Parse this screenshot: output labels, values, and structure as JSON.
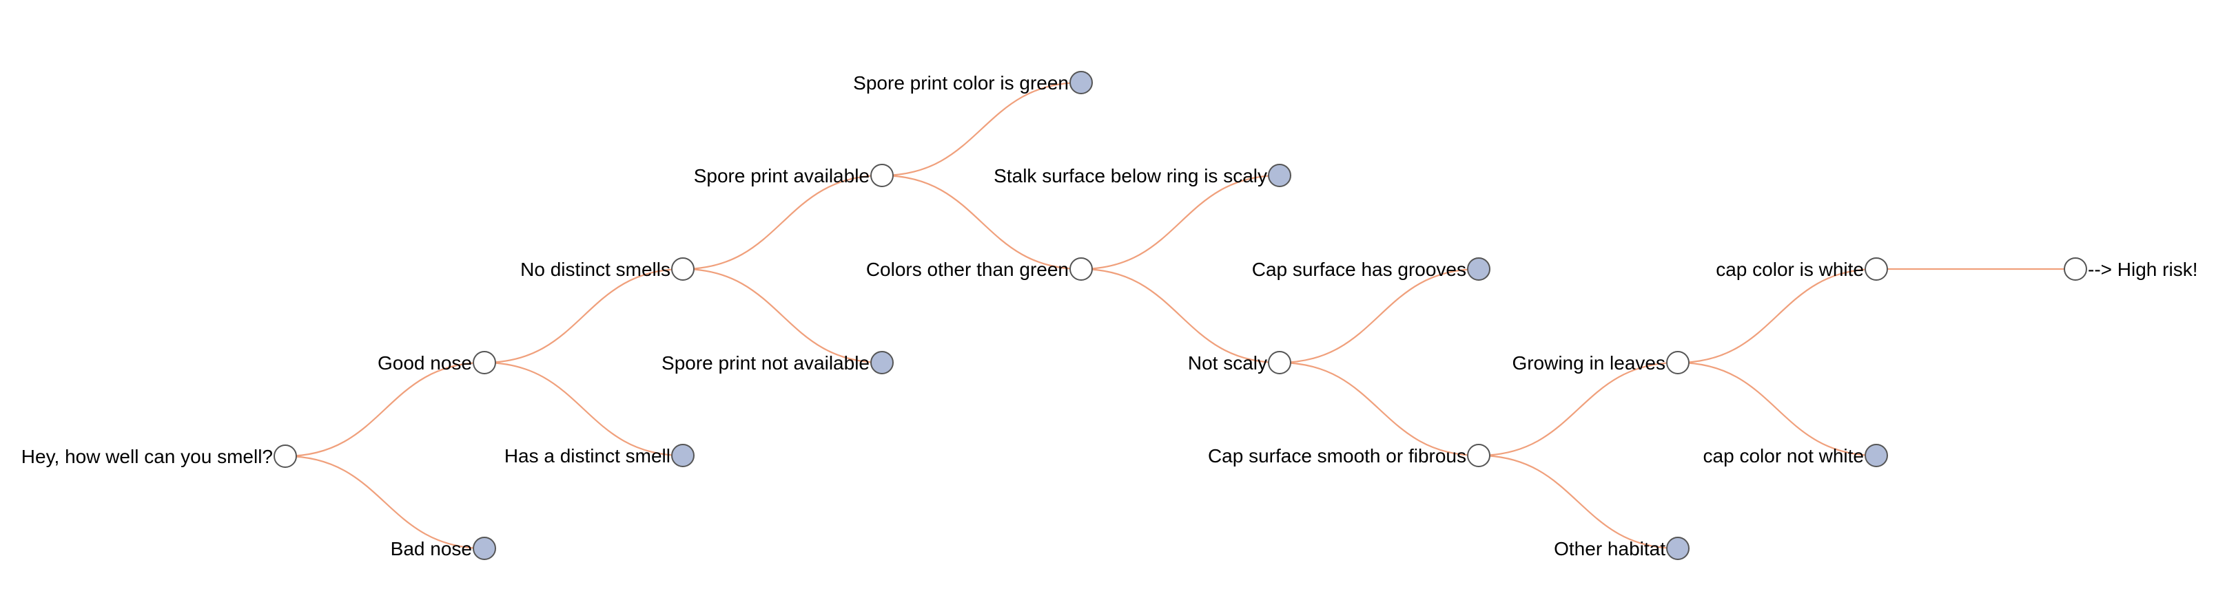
{
  "colors": {
    "link": "#f0a07c",
    "open_node_fill": "#ffffff",
    "leaf_node_fill": "#b0bcd8",
    "node_stroke": "#555555"
  },
  "tree": {
    "nodes": [
      {
        "id": "root",
        "label": "Hey, how well can you smell?",
        "type": "open",
        "label_side": "left"
      },
      {
        "id": "good-nose",
        "label": "Good nose",
        "type": "open",
        "label_side": "left",
        "parent": "root"
      },
      {
        "id": "bad-nose",
        "label": "Bad nose",
        "type": "leaf",
        "label_side": "left",
        "parent": "root"
      },
      {
        "id": "no-distinct-smells",
        "label": "No distinct smells",
        "type": "open",
        "label_side": "left",
        "parent": "good-nose"
      },
      {
        "id": "has-distinct-smell",
        "label": "Has a distinct smell",
        "type": "leaf",
        "label_side": "left",
        "parent": "good-nose"
      },
      {
        "id": "spore-print-available",
        "label": "Spore print available",
        "type": "open",
        "label_side": "left",
        "parent": "no-distinct-smells"
      },
      {
        "id": "spore-print-not-available",
        "label": "Spore print not available",
        "type": "leaf",
        "label_side": "left",
        "parent": "no-distinct-smells"
      },
      {
        "id": "spore-print-green",
        "label": "Spore print color is green",
        "type": "leaf",
        "label_side": "left",
        "parent": "spore-print-available"
      },
      {
        "id": "colors-other-than-green",
        "label": "Colors other than green",
        "type": "open",
        "label_side": "left",
        "parent": "spore-print-available"
      },
      {
        "id": "stalk-surface-scaly",
        "label": "Stalk surface below ring is scaly",
        "type": "leaf",
        "label_side": "left",
        "parent": "colors-other-than-green"
      },
      {
        "id": "not-scaly",
        "label": "Not scaly",
        "type": "open",
        "label_side": "left",
        "parent": "colors-other-than-green"
      },
      {
        "id": "cap-surface-grooves",
        "label": "Cap surface has grooves",
        "type": "leaf",
        "label_side": "left",
        "parent": "not-scaly"
      },
      {
        "id": "cap-surface-smooth",
        "label": "Cap surface smooth or fibrous",
        "type": "open",
        "label_side": "left",
        "parent": "not-scaly"
      },
      {
        "id": "growing-in-leaves",
        "label": "Growing in leaves",
        "type": "open",
        "label_side": "left",
        "parent": "cap-surface-smooth"
      },
      {
        "id": "other-habitat",
        "label": "Other habitat",
        "type": "leaf",
        "label_side": "left",
        "parent": "cap-surface-smooth"
      },
      {
        "id": "cap-color-white",
        "label": "cap color is white",
        "type": "open",
        "label_side": "left",
        "parent": "growing-in-leaves"
      },
      {
        "id": "cap-color-not-white",
        "label": "cap color not white",
        "type": "leaf",
        "label_side": "left",
        "parent": "growing-in-leaves"
      },
      {
        "id": "high-risk",
        "label": "--> High risk!",
        "type": "open",
        "label_side": "right",
        "parent": "cap-color-white"
      }
    ]
  }
}
